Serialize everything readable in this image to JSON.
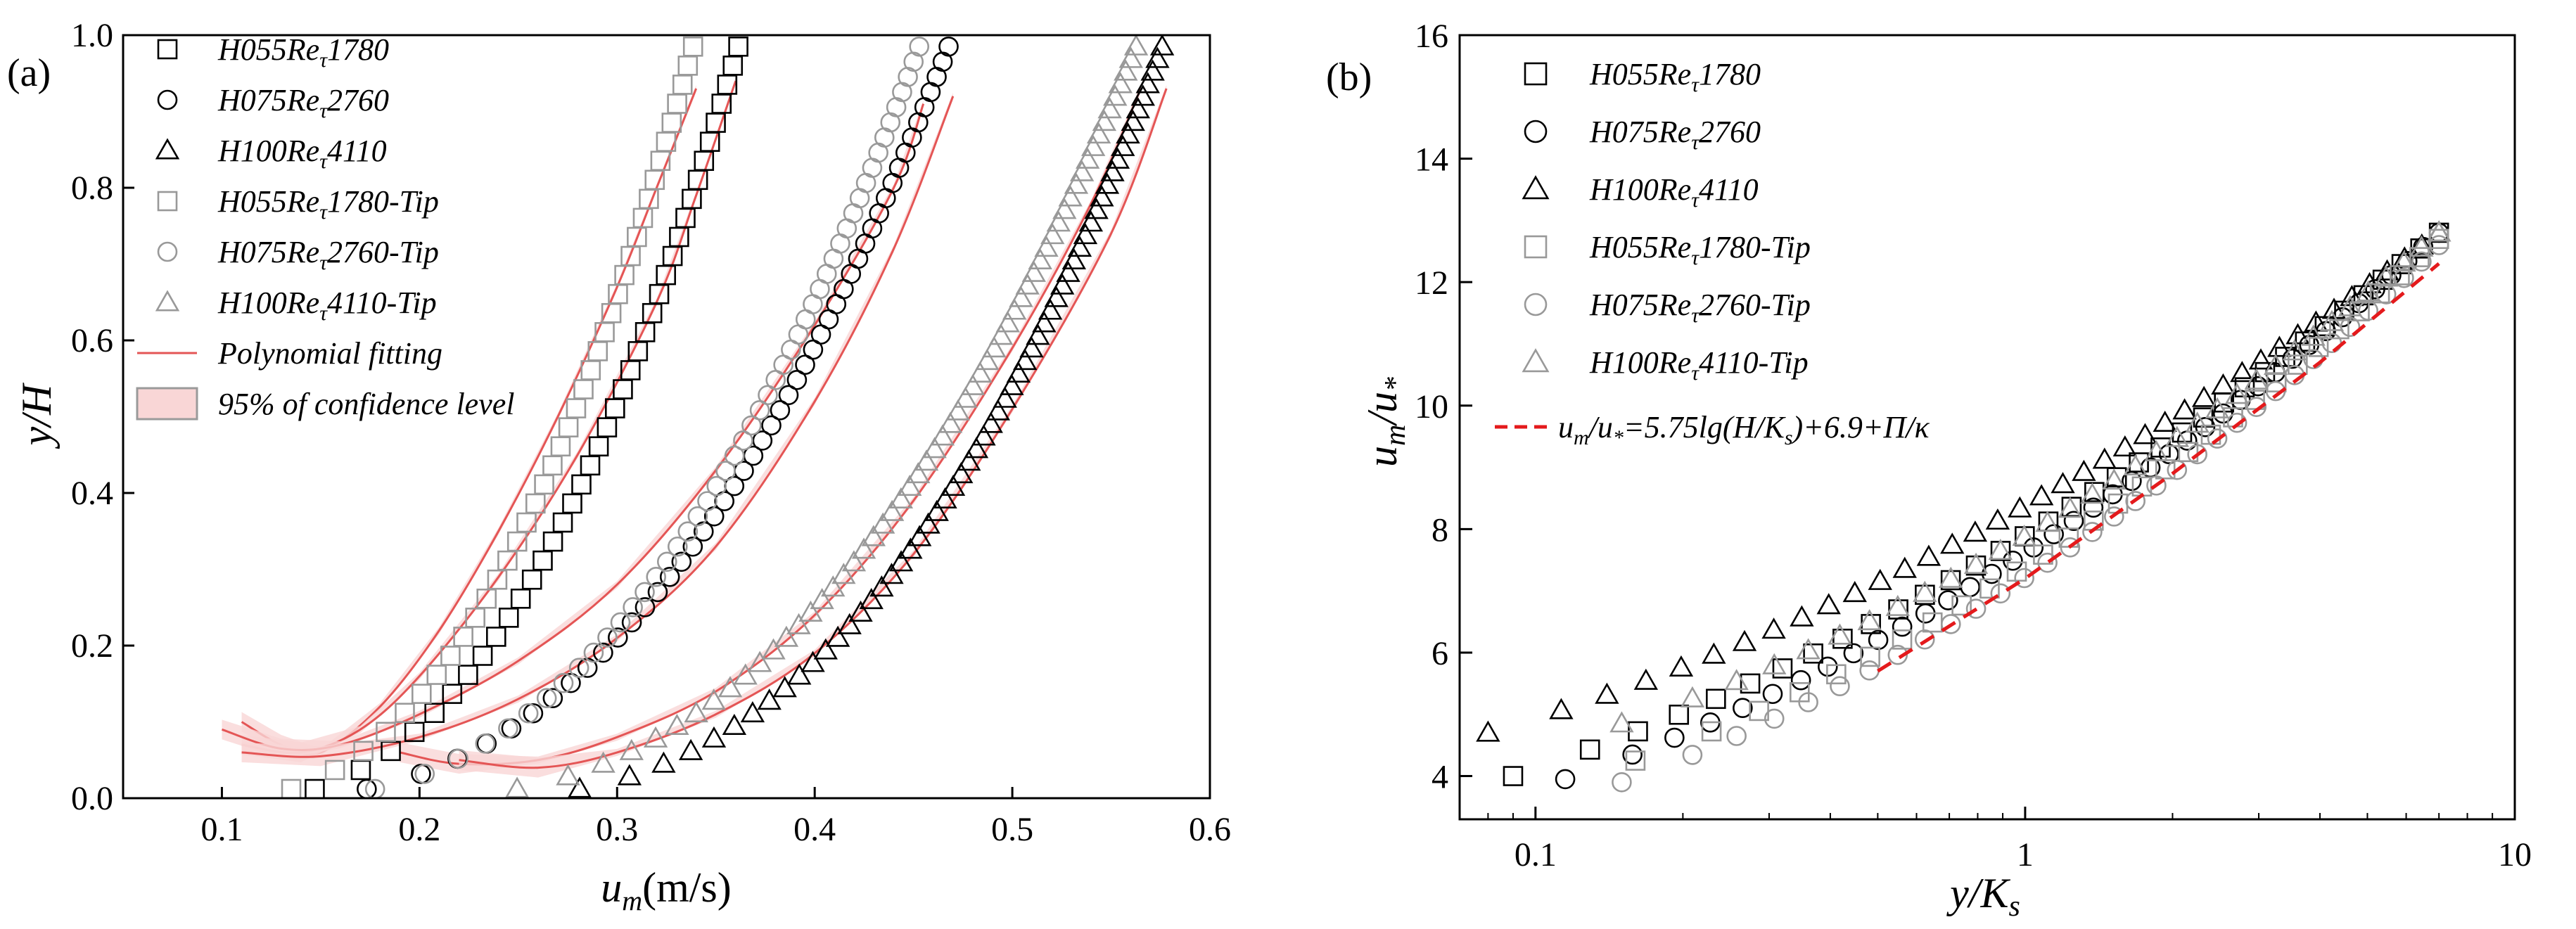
{
  "colors": {
    "black_marker": "#000000",
    "gray_marker": "#999999",
    "fit_line": "#e45555",
    "confidence_fill": "#f9d6d6",
    "confidence_stroke": "#9a9a9a",
    "log_law": "#e41a1c"
  },
  "chart_data": [
    {
      "panel_label": "(a)",
      "type": "scatter",
      "xlabel": "u_m(m/s)",
      "xlabel_parts": {
        "main": "u",
        "sub": "m",
        "rest": "(m/s)"
      },
      "ylabel": "y/H",
      "xlim": [
        0.05,
        0.6
      ],
      "ylim": [
        0.0,
        1.0
      ],
      "xticks": [
        0.1,
        0.2,
        0.3,
        0.4,
        0.5,
        0.6
      ],
      "xtick_labels": [
        "0.1",
        "0.2",
        "0.3",
        "0.4",
        "0.5",
        "0.6"
      ],
      "yticks": [
        0.0,
        0.2,
        0.4,
        0.6,
        0.8,
        1.0
      ],
      "ytick_labels": [
        "0.0",
        "0.2",
        "0.4",
        "0.6",
        "0.8",
        "1.0"
      ],
      "legend": [
        {
          "pre": "H055Re",
          "sub": "τ",
          "post": "1780",
          "marker": "square",
          "color": "black"
        },
        {
          "pre": "H075Re",
          "sub": "τ",
          "post": "2760",
          "marker": "circle",
          "color": "black"
        },
        {
          "pre": "H100Re",
          "sub": "τ",
          "post": "4110",
          "marker": "triangle",
          "color": "black"
        },
        {
          "pre": "H055Re",
          "sub": "τ",
          "post": "1780-Tip",
          "marker": "square",
          "color": "gray"
        },
        {
          "pre": "H075Re",
          "sub": "τ",
          "post": "2760-Tip",
          "marker": "circle",
          "color": "gray"
        },
        {
          "pre": "H100Re",
          "sub": "τ",
          "post": "4110-Tip",
          "marker": "triangle",
          "color": "gray"
        },
        {
          "pre": "Polynomial fitting",
          "sub": "",
          "post": "",
          "marker": "line",
          "color": "fit"
        },
        {
          "pre": "95%  of confidence level",
          "sub": "",
          "post": "",
          "marker": "band",
          "color": "fit"
        }
      ],
      "series": [
        {
          "name": "H055Reτ1780",
          "marker": "square",
          "color": "black",
          "u_base": 0.11,
          "u_top": 0.363,
          "power": 2.3,
          "n": 40
        },
        {
          "name": "H075Reτ2760",
          "marker": "circle",
          "color": "black",
          "u_base": 0.12,
          "u_top": 0.47,
          "power": 2.35,
          "n": 50
        },
        {
          "name": "H100Reτ4110",
          "marker": "triangle",
          "color": "black",
          "u_base": 0.22,
          "u_top": 0.578,
          "power": 2.5,
          "n": 60
        },
        {
          "name": "H055Reτ1780-Tip",
          "marker": "square",
          "color": "gray",
          "u_base": 0.1,
          "u_top": 0.34,
          "power": 2.3,
          "n": 40
        },
        {
          "name": "H075Reτ2760-Tip",
          "marker": "circle",
          "color": "gray",
          "u_base": 0.13,
          "u_top": 0.455,
          "power": 2.3,
          "n": 50
        },
        {
          "name": "H100Reτ4110-Tip",
          "marker": "triangle",
          "color": "gray",
          "u_base": 0.19,
          "u_top": 0.565,
          "power": 2.4,
          "n": 60
        }
      ],
      "fits": [
        {
          "x": [
            0.11,
            0.13,
            0.15,
            0.18,
            0.21,
            0.24,
            0.27,
            0.3,
            0.32,
            0.34
          ],
          "y": [
            0.1,
            0.07,
            0.06,
            0.12,
            0.22,
            0.35,
            0.5,
            0.67,
            0.8,
            0.93
          ]
        },
        {
          "x": [
            0.11,
            0.14,
            0.17,
            0.2,
            0.24,
            0.28,
            0.32,
            0.34,
            0.36
          ],
          "y": [
            0.07,
            0.06,
            0.09,
            0.16,
            0.29,
            0.45,
            0.65,
            0.79,
            0.94
          ]
        },
        {
          "x": [
            0.1,
            0.13,
            0.16,
            0.2,
            0.25,
            0.3,
            0.35,
            0.4,
            0.44,
            0.455
          ],
          "y": [
            0.09,
            0.065,
            0.07,
            0.11,
            0.18,
            0.28,
            0.43,
            0.62,
            0.8,
            0.91
          ]
        },
        {
          "x": [
            0.11,
            0.15,
            0.2,
            0.25,
            0.3,
            0.35,
            0.4,
            0.44,
            0.47
          ],
          "y": [
            0.06,
            0.055,
            0.08,
            0.13,
            0.21,
            0.33,
            0.52,
            0.72,
            0.92
          ]
        },
        {
          "x": [
            0.19,
            0.22,
            0.26,
            0.3,
            0.35,
            0.4,
            0.45,
            0.5,
            0.54,
            0.565
          ],
          "y": [
            0.06,
            0.045,
            0.05,
            0.08,
            0.14,
            0.24,
            0.39,
            0.59,
            0.78,
            0.93
          ]
        },
        {
          "x": [
            0.22,
            0.26,
            0.3,
            0.35,
            0.4,
            0.45,
            0.5,
            0.55,
            0.578
          ],
          "y": [
            0.05,
            0.04,
            0.06,
            0.11,
            0.19,
            0.32,
            0.51,
            0.74,
            0.93
          ]
        }
      ]
    },
    {
      "panel_label": "(b)",
      "type": "scatter",
      "xscale": "log",
      "xlabel": "y/K_s",
      "xlabel_parts": {
        "main": "y/K",
        "sub": "s"
      },
      "ylabel": "u_m/u_*",
      "ylabel_parts": {
        "a": "u",
        "a_sub": "m",
        "b": "/u",
        "b_sub": "*"
      },
      "xlim": [
        0.07,
        10
      ],
      "ylim": [
        3.3,
        16
      ],
      "xticks": [
        0.1,
        1,
        10
      ],
      "xtick_labels": [
        "0.1",
        "1",
        "10"
      ],
      "yticks": [
        4,
        6,
        8,
        10,
        12,
        14,
        16
      ],
      "ytick_labels": [
        "4",
        "6",
        "8",
        "10",
        "12",
        "14",
        "16"
      ],
      "legend": [
        {
          "pre": "H055Re",
          "sub": "τ",
          "post": "1780",
          "marker": "square",
          "color": "black"
        },
        {
          "pre": "H075Re",
          "sub": "τ",
          "post": "2760",
          "marker": "circle",
          "color": "black"
        },
        {
          "pre": "H100Re",
          "sub": "τ",
          "post": "4110",
          "marker": "triangle",
          "color": "black"
        },
        {
          "pre": "H055Re",
          "sub": "τ",
          "post": "1780-Tip",
          "marker": "square",
          "color": "gray"
        },
        {
          "pre": "H075Re",
          "sub": "τ",
          "post": "2760-Tip",
          "marker": "circle",
          "color": "gray"
        },
        {
          "pre": "H100Re",
          "sub": "τ",
          "post": "4110-Tip",
          "marker": "triangle",
          "color": "gray"
        },
        {
          "pre": "u",
          "sub": "m",
          "post": "/u",
          "sub2": "*",
          "post2": "=5.75lg(H/K",
          "sub3": "s",
          "post3": ")+6.9+Π/κ",
          "marker": "dash",
          "color": "log_law"
        }
      ],
      "series": [
        {
          "name": "H055Reτ1780",
          "marker": "square",
          "color": "black",
          "x0": 0.09,
          "y0": 4.0,
          "x1": 7.0,
          "y1": 12.8,
          "n": 36
        },
        {
          "name": "H075Reτ2760",
          "marker": "circle",
          "color": "black",
          "x0": 0.115,
          "y0": 3.95,
          "x1": 7.0,
          "y1": 12.8,
          "n": 40
        },
        {
          "name": "H100Reτ4110",
          "marker": "triangle",
          "color": "black",
          "x0": 0.08,
          "y0": 4.7,
          "x1": 7.0,
          "y1": 12.8,
          "n": 40
        },
        {
          "name": "H055Reτ1780-Tip",
          "marker": "square",
          "color": "gray",
          "x0": 0.16,
          "y0": 4.25,
          "x1": 7.0,
          "y1": 12.7,
          "n": 30
        },
        {
          "name": "H075Reτ2760-Tip",
          "marker": "circle",
          "color": "gray",
          "x0": 0.15,
          "y0": 3.9,
          "x1": 7.0,
          "y1": 12.6,
          "n": 34
        },
        {
          "name": "H100Reτ4110-Tip",
          "marker": "triangle",
          "color": "gray",
          "x0": 0.15,
          "y0": 4.85,
          "x1": 7.0,
          "y1": 12.8,
          "n": 34
        }
      ],
      "log_law": {
        "x": [
          0.5,
          1,
          2,
          4,
          7
        ],
        "y": [
          5.7,
          7.2,
          8.9,
          10.7,
          12.3
        ]
      }
    }
  ]
}
